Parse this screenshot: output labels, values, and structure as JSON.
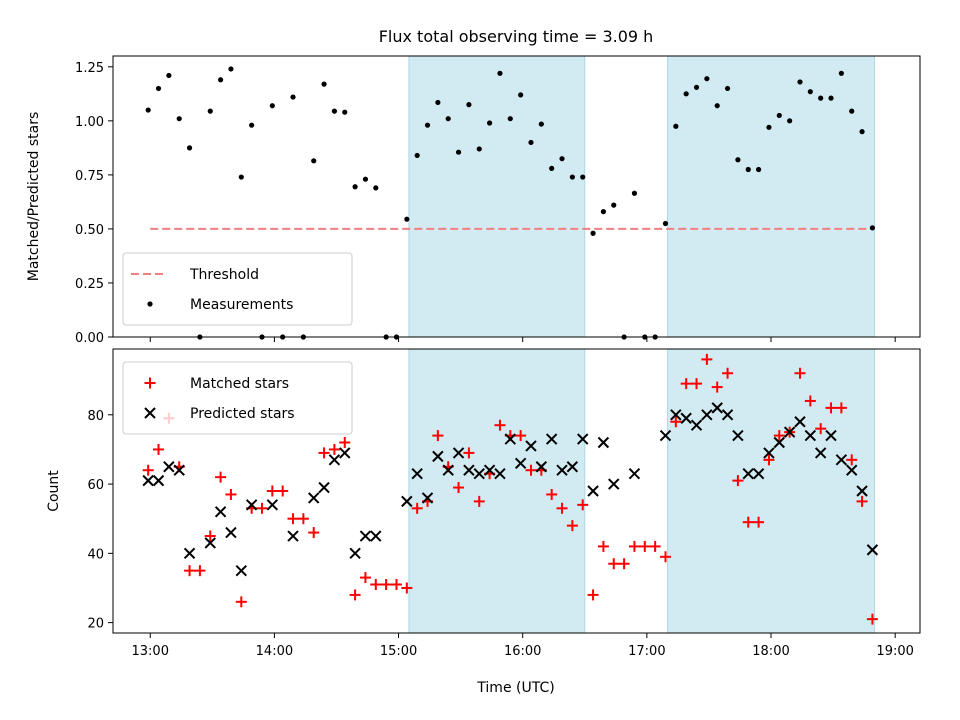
{
  "chart_data": {
    "title": "Flux total observing time = 3.09 h",
    "shaded_intervals": [
      [
        "15:05",
        "16:30"
      ],
      [
        "17:10",
        "18:50"
      ]
    ],
    "shade_color": "#add8e6",
    "x_axis": {
      "label": "Time (UTC)",
      "range": [
        "12:42",
        "19:12"
      ],
      "ticks": [
        "13:00",
        "14:00",
        "15:00",
        "16:00",
        "17:00",
        "18:00",
        "19:00"
      ]
    },
    "panels": [
      {
        "type": "scatter",
        "ylabel": "Matched/Predicted stars",
        "ylim": [
          0,
          1.3
        ],
        "yticks": [
          "0.00",
          "0.25",
          "0.50",
          "0.75",
          "1.00",
          "1.25"
        ],
        "legend_position": "lower-left",
        "threshold": {
          "name": "Threshold",
          "value": 0.5,
          "range": [
            "13:00",
            "18:50"
          ],
          "color": "#f08080"
        },
        "series": [
          {
            "name": "Measurements",
            "marker": "dot",
            "color": "#000000",
            "points": [
              [
                "12:59",
                1.05
              ],
              [
                "13:04",
                1.15
              ],
              [
                "13:09",
                1.21
              ],
              [
                "13:14",
                1.01
              ],
              [
                "13:19",
                0.875
              ],
              [
                "13:24",
                0.0
              ],
              [
                "13:29",
                1.045
              ],
              [
                "13:34",
                1.19
              ],
              [
                "13:39",
                1.24
              ],
              [
                "13:44",
                0.74
              ],
              [
                "13:49",
                0.98
              ],
              [
                "13:54",
                0.0
              ],
              [
                "13:59",
                1.07
              ],
              [
                "14:04",
                0.0
              ],
              [
                "14:09",
                1.11
              ],
              [
                "14:14",
                0.0
              ],
              [
                "14:19",
                0.815
              ],
              [
                "14:24",
                1.17
              ],
              [
                "14:29",
                1.045
              ],
              [
                "14:34",
                1.04
              ],
              [
                "14:39",
                0.695
              ],
              [
                "14:44",
                0.73
              ],
              [
                "14:49",
                0.69
              ],
              [
                "14:54",
                0.0
              ],
              [
                "14:59",
                0.0
              ],
              [
                "15:04",
                0.545
              ],
              [
                "15:09",
                0.84
              ],
              [
                "15:14",
                0.98
              ],
              [
                "15:19",
                1.085
              ],
              [
                "15:24",
                1.01
              ],
              [
                "15:29",
                0.855
              ],
              [
                "15:34",
                1.075
              ],
              [
                "15:39",
                0.87
              ],
              [
                "15:44",
                0.99
              ],
              [
                "15:49",
                1.22
              ],
              [
                "15:54",
                1.01
              ],
              [
                "15:59",
                1.12
              ],
              [
                "16:04",
                0.9
              ],
              [
                "16:09",
                0.985
              ],
              [
                "16:14",
                0.78
              ],
              [
                "16:19",
                0.825
              ],
              [
                "16:24",
                0.74
              ],
              [
                "16:29",
                0.74
              ],
              [
                "16:34",
                0.48
              ],
              [
                "16:39",
                0.58
              ],
              [
                "16:44",
                0.61
              ],
              [
                "16:49",
                0.0
              ],
              [
                "16:54",
                0.665
              ],
              [
                "16:59",
                0.0
              ],
              [
                "17:04",
                0.0
              ],
              [
                "17:09",
                0.525
              ],
              [
                "17:14",
                0.975
              ],
              [
                "17:19",
                1.125
              ],
              [
                "17:24",
                1.155
              ],
              [
                "17:29",
                1.195
              ],
              [
                "17:34",
                1.07
              ],
              [
                "17:39",
                1.15
              ],
              [
                "17:44",
                0.82
              ],
              [
                "17:49",
                0.775
              ],
              [
                "17:54",
                0.775
              ],
              [
                "17:59",
                0.97
              ],
              [
                "18:04",
                1.025
              ],
              [
                "18:09",
                1.0
              ],
              [
                "18:14",
                1.18
              ],
              [
                "18:19",
                1.135
              ],
              [
                "18:24",
                1.105
              ],
              [
                "18:29",
                1.105
              ],
              [
                "18:34",
                1.22
              ],
              [
                "18:39",
                1.045
              ],
              [
                "18:44",
                0.95
              ],
              [
                "18:49",
                0.505
              ]
            ]
          }
        ]
      },
      {
        "type": "scatter",
        "ylabel": "Count",
        "ylim": [
          17,
          99
        ],
        "yticks": [
          "20",
          "40",
          "60",
          "80"
        ],
        "legend_position": "upper-left",
        "series": [
          {
            "name": "Matched stars",
            "marker": "plus",
            "color": "#ff0000",
            "points": [
              [
                "12:59",
                64
              ],
              [
                "13:04",
                70
              ],
              [
                "13:09",
                79
              ],
              [
                "13:14",
                65
              ],
              [
                "13:19",
                35
              ],
              [
                "13:24",
                35
              ],
              [
                "13:29",
                45
              ],
              [
                "13:34",
                62
              ],
              [
                "13:39",
                57
              ],
              [
                "13:44",
                26
              ],
              [
                "13:49",
                53
              ],
              [
                "13:54",
                53
              ],
              [
                "13:59",
                58
              ],
              [
                "14:04",
                58
              ],
              [
                "14:09",
                50
              ],
              [
                "14:14",
                50
              ],
              [
                "14:19",
                46
              ],
              [
                "14:24",
                69
              ],
              [
                "14:29",
                70
              ],
              [
                "14:34",
                72
              ],
              [
                "14:39",
                28
              ],
              [
                "14:44",
                33
              ],
              [
                "14:49",
                31
              ],
              [
                "14:54",
                31
              ],
              [
                "14:59",
                31
              ],
              [
                "15:04",
                30
              ],
              [
                "15:09",
                53
              ],
              [
                "15:14",
                55
              ],
              [
                "15:19",
                74
              ],
              [
                "15:24",
                65
              ],
              [
                "15:29",
                59
              ],
              [
                "15:34",
                69
              ],
              [
                "15:39",
                55
              ],
              [
                "15:44",
                63
              ],
              [
                "15:49",
                77
              ],
              [
                "15:54",
                74
              ],
              [
                "15:59",
                74
              ],
              [
                "16:04",
                64
              ],
              [
                "16:09",
                64
              ],
              [
                "16:14",
                57
              ],
              [
                "16:19",
                53
              ],
              [
                "16:24",
                48
              ],
              [
                "16:29",
                54
              ],
              [
                "16:34",
                28
              ],
              [
                "16:39",
                42
              ],
              [
                "16:44",
                37
              ],
              [
                "16:49",
                37
              ],
              [
                "16:54",
                42
              ],
              [
                "16:59",
                42
              ],
              [
                "17:04",
                42
              ],
              [
                "17:09",
                39
              ],
              [
                "17:14",
                78
              ],
              [
                "17:19",
                89
              ],
              [
                "17:24",
                89
              ],
              [
                "17:29",
                96
              ],
              [
                "17:34",
                88
              ],
              [
                "17:39",
                92
              ],
              [
                "17:44",
                61
              ],
              [
                "17:49",
                49
              ],
              [
                "17:54",
                49
              ],
              [
                "17:59",
                67
              ],
              [
                "18:04",
                74
              ],
              [
                "18:09",
                75
              ],
              [
                "18:14",
                92
              ],
              [
                "18:19",
                84
              ],
              [
                "18:24",
                76
              ],
              [
                "18:29",
                82
              ],
              [
                "18:34",
                82
              ],
              [
                "18:39",
                67
              ],
              [
                "18:44",
                55
              ],
              [
                "18:49",
                21
              ]
            ]
          },
          {
            "name": "Predicted stars",
            "marker": "x",
            "color": "#000000",
            "points": [
              [
                "12:59",
                61
              ],
              [
                "13:04",
                61
              ],
              [
                "13:09",
                65
              ],
              [
                "13:14",
                64
              ],
              [
                "13:19",
                40
              ],
              [
                "13:29",
                43
              ],
              [
                "13:34",
                52
              ],
              [
                "13:39",
                46
              ],
              [
                "13:44",
                35
              ],
              [
                "13:49",
                54
              ],
              [
                "13:59",
                54
              ],
              [
                "14:09",
                45
              ],
              [
                "14:19",
                56
              ],
              [
                "14:24",
                59
              ],
              [
                "14:29",
                67
              ],
              [
                "14:34",
                69
              ],
              [
                "14:39",
                40
              ],
              [
                "14:44",
                45
              ],
              [
                "14:49",
                45
              ],
              [
                "15:04",
                55
              ],
              [
                "15:09",
                63
              ],
              [
                "15:14",
                56
              ],
              [
                "15:19",
                68
              ],
              [
                "15:24",
                64
              ],
              [
                "15:29",
                69
              ],
              [
                "15:34",
                64
              ],
              [
                "15:39",
                63
              ],
              [
                "15:44",
                64
              ],
              [
                "15:49",
                63
              ],
              [
                "15:54",
                73
              ],
              [
                "15:59",
                66
              ],
              [
                "16:04",
                71
              ],
              [
                "16:09",
                65
              ],
              [
                "16:14",
                73
              ],
              [
                "16:19",
                64
              ],
              [
                "16:24",
                65
              ],
              [
                "16:29",
                73
              ],
              [
                "16:34",
                58
              ],
              [
                "16:39",
                72
              ],
              [
                "16:44",
                60
              ],
              [
                "16:54",
                63
              ],
              [
                "17:09",
                74
              ],
              [
                "17:14",
                80
              ],
              [
                "17:19",
                79
              ],
              [
                "17:24",
                77
              ],
              [
                "17:29",
                80
              ],
              [
                "17:34",
                82
              ],
              [
                "17:39",
                80
              ],
              [
                "17:44",
                74
              ],
              [
                "17:49",
                63
              ],
              [
                "17:54",
                63
              ],
              [
                "17:59",
                69
              ],
              [
                "18:04",
                72
              ],
              [
                "18:09",
                75
              ],
              [
                "18:14",
                78
              ],
              [
                "18:19",
                74
              ],
              [
                "18:24",
                69
              ],
              [
                "18:29",
                74
              ],
              [
                "18:34",
                67
              ],
              [
                "18:39",
                64
              ],
              [
                "18:44",
                58
              ],
              [
                "18:49",
                41
              ]
            ]
          }
        ]
      }
    ]
  }
}
